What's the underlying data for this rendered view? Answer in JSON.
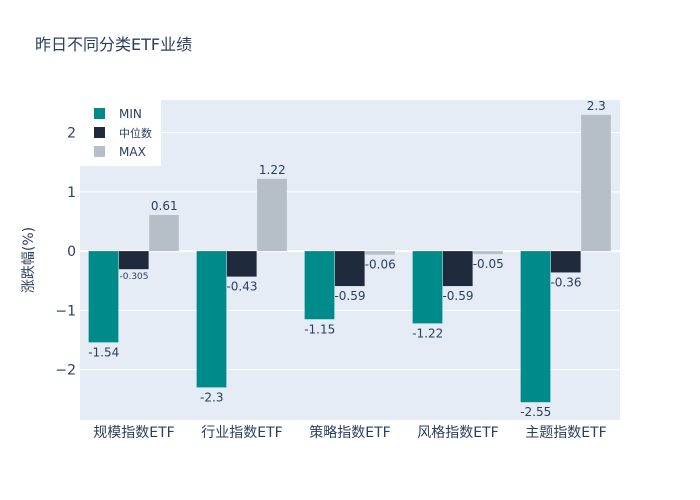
{
  "chart_data": {
    "type": "bar",
    "title": "昨日不同分类ETF业绩",
    "xlabel": "",
    "ylabel": "涨跌幅(%)",
    "categories": [
      "规模指数ETF",
      "行业指数ETF",
      "策略指数ETF",
      "风格指数ETF",
      "主题指数ETF"
    ],
    "series": [
      {
        "name": "MIN",
        "color": "#008b8b",
        "values": [
          -1.54,
          -2.3,
          -1.15,
          -1.22,
          -2.55
        ],
        "labels": [
          "-1.54",
          "-2.3",
          "-1.15",
          "-1.22",
          "-2.55"
        ]
      },
      {
        "name": "中位数",
        "color": "#1f2a3c",
        "values": [
          -0.305,
          -0.43,
          -0.59,
          -0.59,
          -0.36
        ],
        "labels": [
          "-0.305",
          "-0.43",
          "-0.59",
          "-0.59",
          "-0.36"
        ]
      },
      {
        "name": "MAX",
        "color": "#b6bec7",
        "values": [
          0.61,
          1.22,
          -0.06,
          -0.05,
          2.3
        ],
        "labels": [
          "0.61",
          "1.22",
          "-0.06",
          "-0.05",
          "2.3"
        ]
      }
    ],
    "ylim": [
      -2.85,
      2.55
    ],
    "yticks": [
      -2,
      -1,
      0,
      1,
      2
    ],
    "ytick_labels": [
      "−2",
      "−1",
      "0",
      "1",
      "2"
    ],
    "grid": true,
    "legend_position": "top-left",
    "plot_bg": "#e5ecf6"
  }
}
